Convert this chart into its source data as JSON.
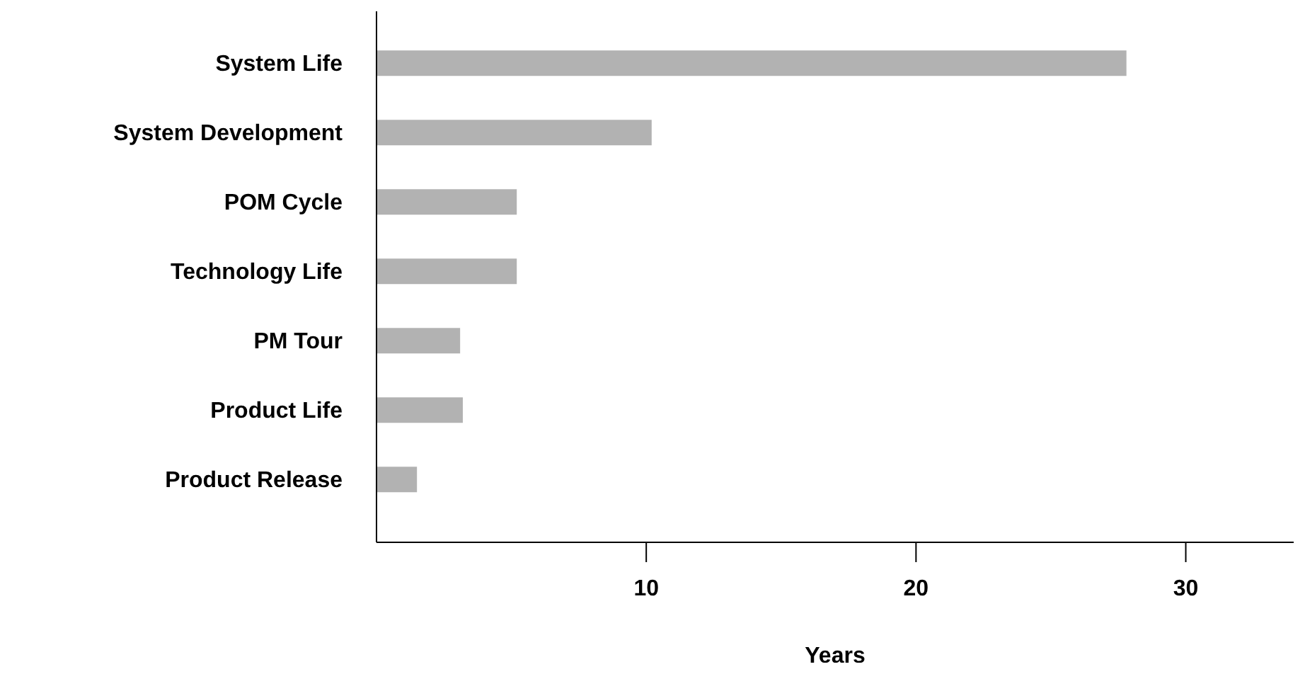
{
  "chart_data": {
    "type": "bar",
    "orientation": "horizontal",
    "xlabel": "Years",
    "categories": [
      "System Life",
      "System Development",
      "POM Cycle",
      "Technology Life",
      "PM Tour",
      "Product Life",
      "Product Release"
    ],
    "values": [
      27.8,
      10.2,
      5.2,
      5.2,
      3.1,
      3.2,
      1.5
    ],
    "color": "#b2b2b2",
    "xlim": [
      0,
      34
    ],
    "xticks": [
      10,
      20,
      30
    ],
    "grid": false
  }
}
